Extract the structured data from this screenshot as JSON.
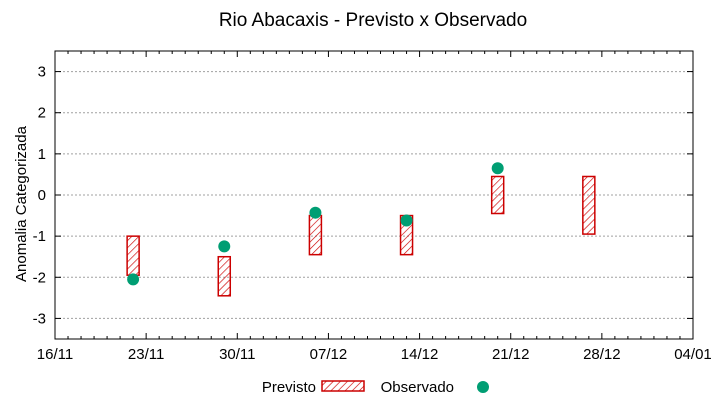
{
  "chart_data": {
    "type": "range-bar-with-points",
    "title": "Rio Abacaxis - Previsto x Observado",
    "xlabel": "",
    "ylabel": "Anomalia Categorizada",
    "x_ticks": [
      "16/11",
      "23/11",
      "30/11",
      "07/12",
      "14/12",
      "21/12",
      "28/12",
      "04/01"
    ],
    "ylim": [
      -3.5,
      3.5
    ],
    "y_ticks": [
      -3,
      -2,
      -1,
      0,
      1,
      2,
      3
    ],
    "grid": true,
    "legend_position": "bottom",
    "colors": {
      "previsto": "#cc0000",
      "observado": "#009e73"
    },
    "series": [
      {
        "name": "Previsto",
        "kind": "range",
        "x": [
          "22/11",
          "29/11",
          "06/12",
          "13/12",
          "20/12",
          "27/12"
        ],
        "low": [
          -1.95,
          -2.45,
          -1.45,
          -1.45,
          -0.45,
          -0.95
        ],
        "high": [
          -1.0,
          -1.5,
          -0.5,
          -0.5,
          0.45,
          0.45
        ]
      },
      {
        "name": "Observado",
        "kind": "point",
        "x": [
          "22/11",
          "29/11",
          "06/12",
          "13/12",
          "20/12"
        ],
        "values": [
          -2.05,
          -1.25,
          -0.43,
          -0.62,
          0.65
        ]
      }
    ]
  }
}
